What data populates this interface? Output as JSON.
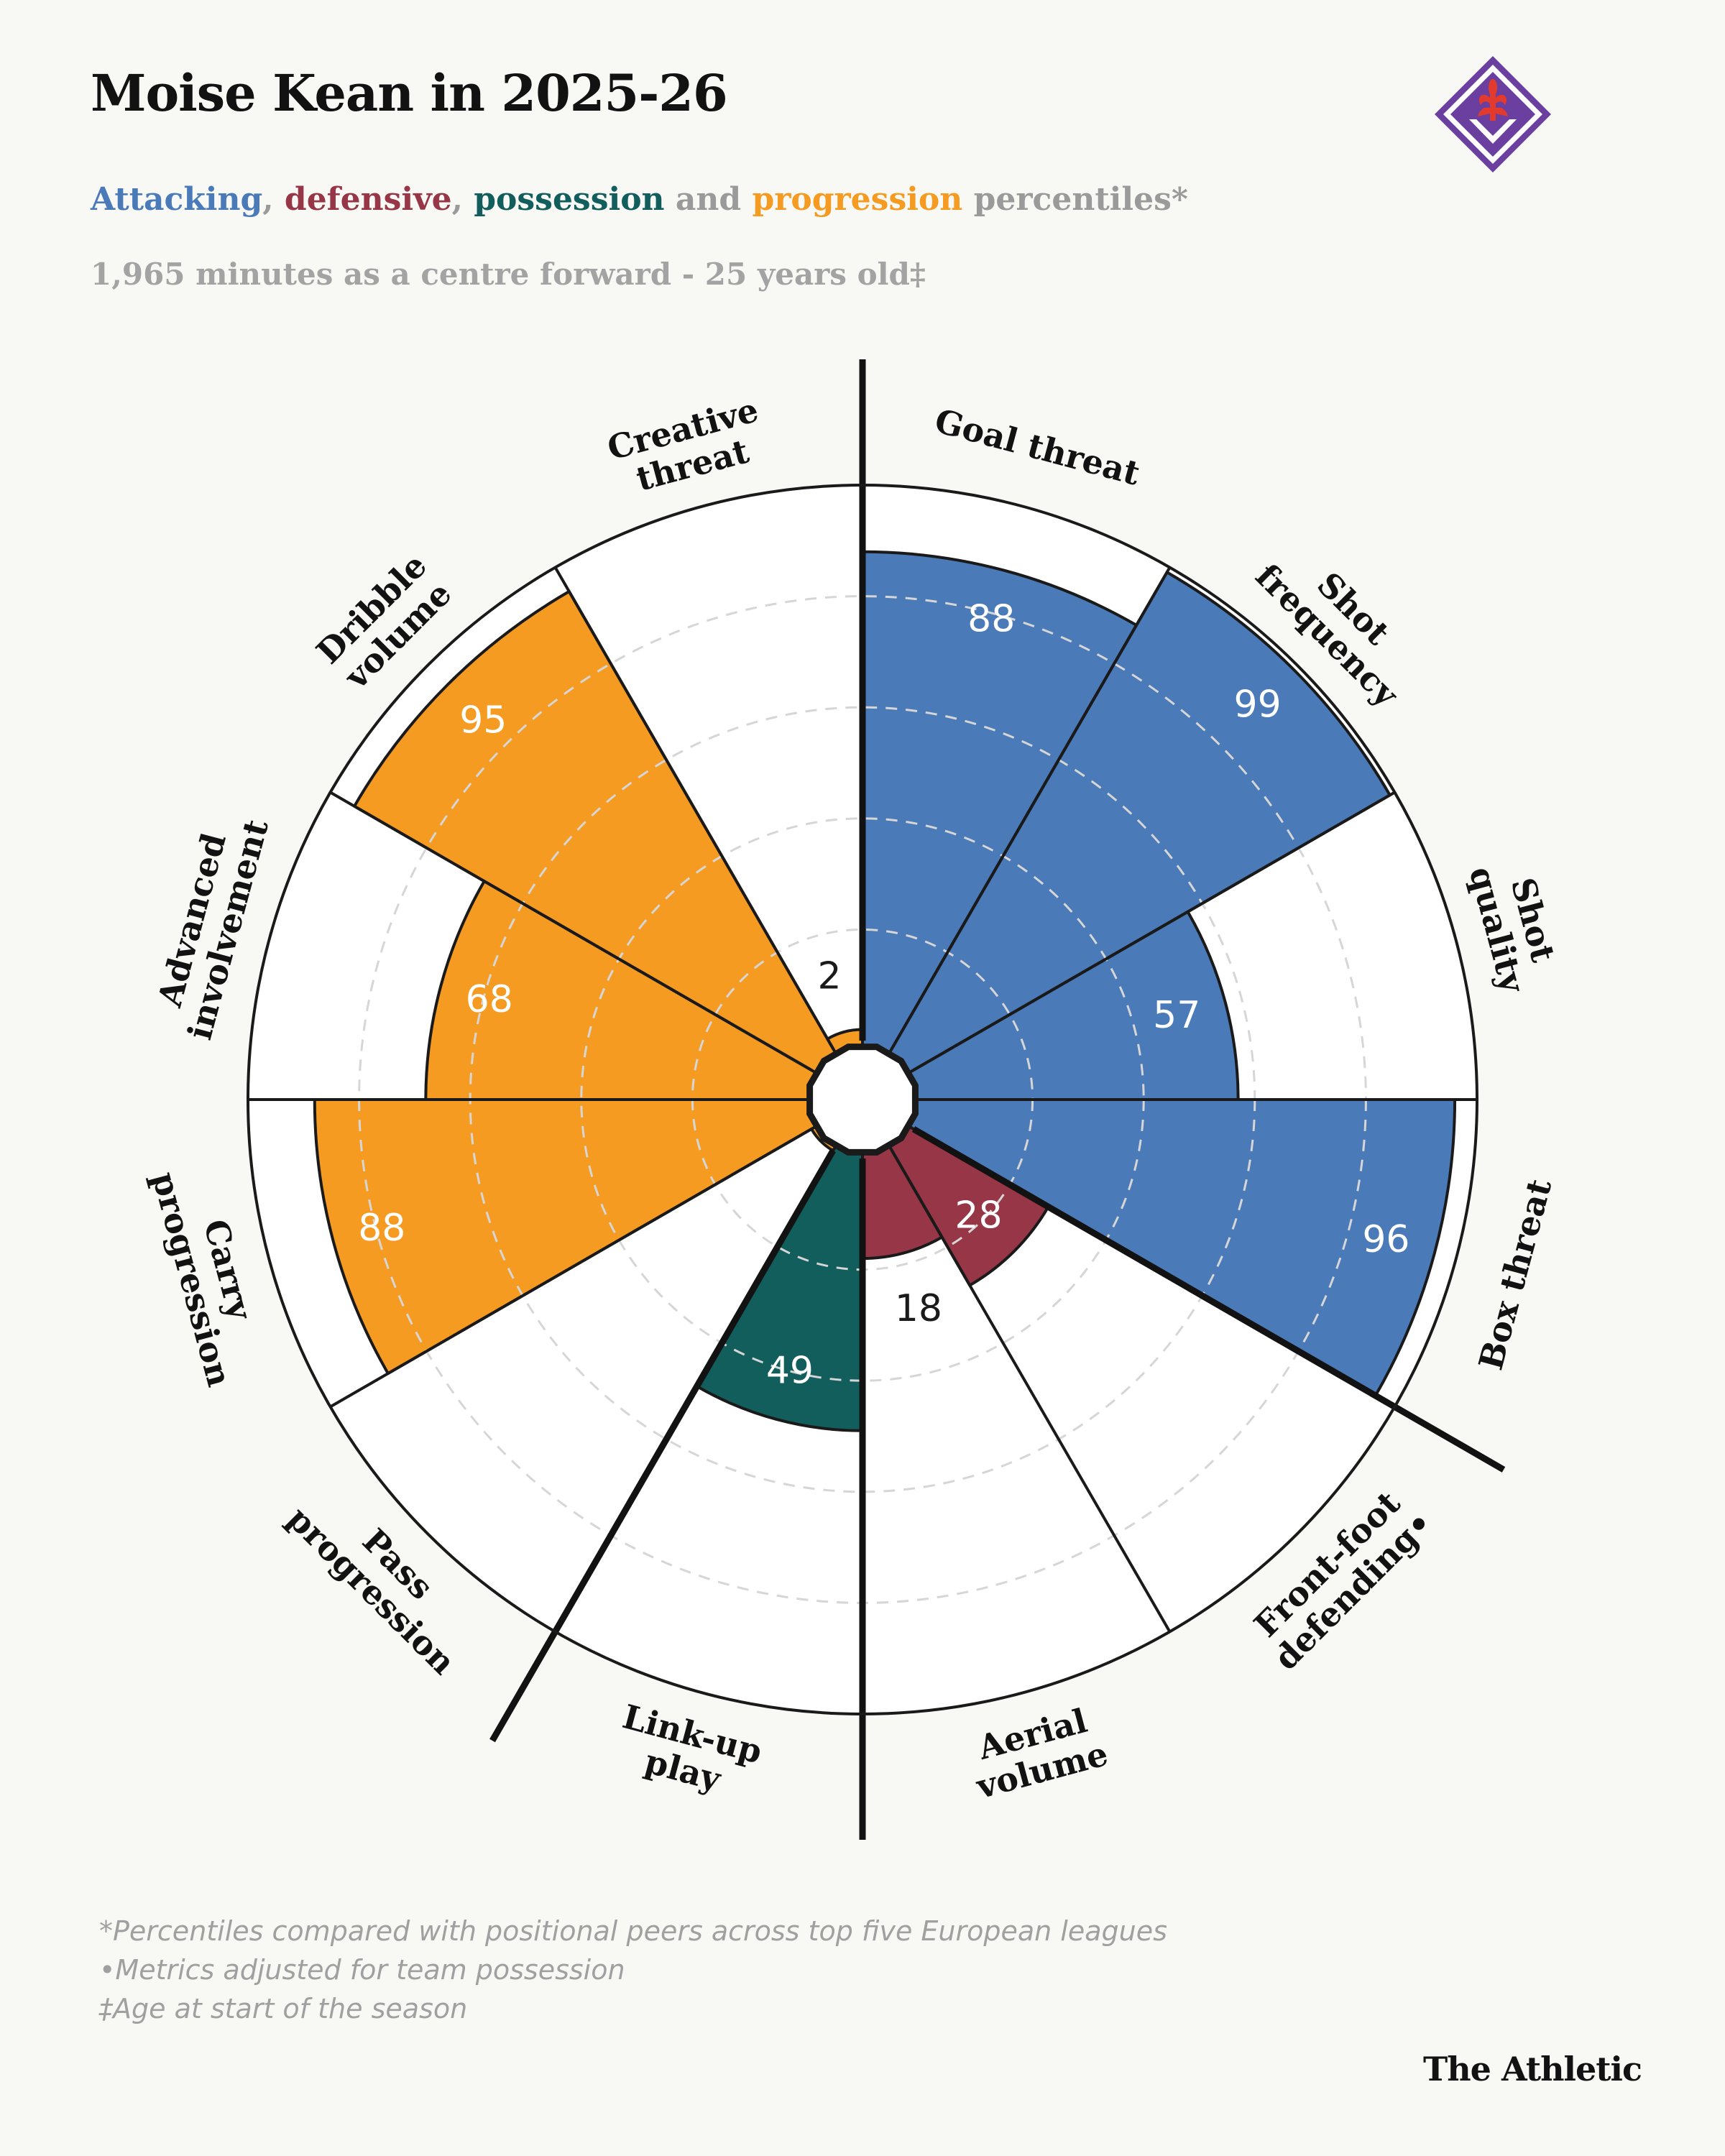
{
  "title": "Moise Kean in 2025-26",
  "subtitle": {
    "attacking": "Attacking",
    "sep1": ", ",
    "defensive": "defensive",
    "sep2": ", ",
    "possession": "possession",
    "and": " and ",
    "progression": "progression",
    "rest": " percentiles*"
  },
  "subline": "1,965 minutes as a centre forward - 25 years old‡",
  "colors": {
    "attacking": "#4a7ab8",
    "defensive": "#963647",
    "possession": "#115e5c",
    "progression": "#f69b21",
    "background": "#f8f8f5",
    "text": "#121212",
    "muted": "#a0a0a0"
  },
  "chart_data": {
    "type": "polar-bar",
    "rlim": [
      0,
      100
    ],
    "grid": true,
    "categories": [
      "Goal threat",
      "Shot frequency",
      "Shot quality",
      "Box threat",
      "Front-foot defending•",
      "Aerial volume",
      "Link-up play",
      "Pass progression",
      "Carry progression",
      "Advanced involvement",
      "Dribble volume",
      "Creative threat"
    ],
    "label_lines": [
      [
        "Goal threat"
      ],
      [
        "Shot",
        "frequency"
      ],
      [
        "Shot",
        "quality"
      ],
      [
        "Box threat"
      ],
      [
        "Front-foot",
        "defending•"
      ],
      [
        "Aerial",
        "volume"
      ],
      [
        "Link-up",
        "play"
      ],
      [
        "Pass",
        "progression"
      ],
      [
        "Carry",
        "progression"
      ],
      [
        "Advanced",
        "involvement"
      ],
      [
        "Dribble",
        "volume"
      ],
      [
        "Creative",
        "threat"
      ]
    ],
    "values": [
      88,
      99,
      57,
      96,
      28,
      18,
      49,
      0,
      88,
      68,
      95,
      2
    ],
    "value_labels": [
      "88",
      "99",
      "57",
      "96",
      "28",
      "18",
      "49",
      "",
      "88",
      "68",
      "95",
      "2"
    ],
    "groups": [
      "attacking",
      "attacking",
      "attacking",
      "attacking",
      "defensive",
      "defensive",
      "possession",
      "progression",
      "progression",
      "progression",
      "progression",
      "progression"
    ]
  },
  "footnotes": [
    "*Percentiles compared with positional peers across top five European leagues",
    "•Metrics adjusted for team possession",
    "‡Age at start of the season"
  ],
  "brand": "The Athletic",
  "logo_icon": "fiorentina-crest-icon"
}
